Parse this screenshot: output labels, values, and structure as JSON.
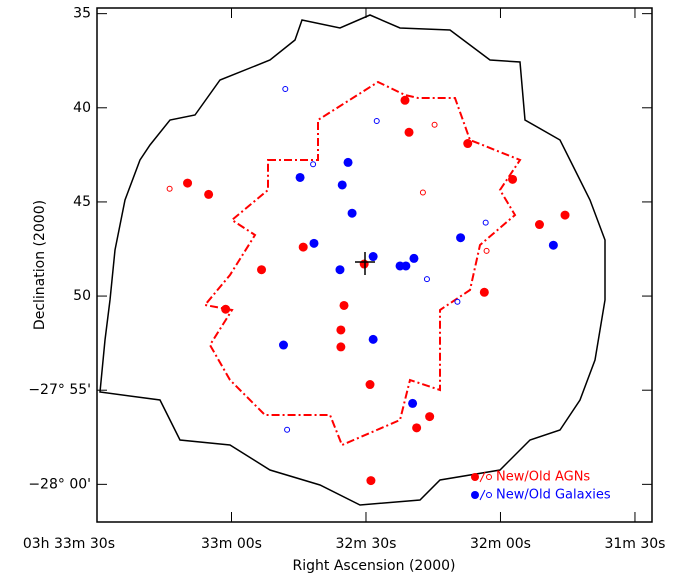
{
  "chart_data": {
    "type": "scatter",
    "x_label": "Right Ascension (2000)",
    "y_label": "Declination (2000)",
    "xlim": [
      150,
      26.2
    ],
    "ylim": [
      62.0,
      34.7
    ],
    "xticks": [
      {
        "value": 150,
        "label": "03h 33m 30s"
      },
      {
        "value": 120,
        "label": "33m 00s"
      },
      {
        "value": 90,
        "label": "32m 30s"
      },
      {
        "value": 60,
        "label": "32m 00s"
      },
      {
        "value": 30,
        "label": "31m 30s"
      }
    ],
    "yticks": [
      35,
      40,
      45,
      50,
      {
        "value": 55,
        "label": "−27° 55'"
      },
      {
        "value": 60,
        "label": "−28° 00'"
      }
    ],
    "series": [
      {
        "color": "#ff0000",
        "filled": true,
        "x": [
          81.3,
          80.4,
          67.3,
          129.8,
          125.1,
          57.3,
          45.6,
          51.3,
          104.0,
          113.3,
          63.6,
          121.3,
          94.9,
          95.6,
          95.6,
          89.1,
          75.8,
          78.7,
          88.9,
          90.4
        ],
        "values": [
          39.6,
          41.3,
          41.9,
          44.0,
          44.6,
          43.8,
          45.7,
          46.2,
          47.4,
          48.6,
          49.8,
          50.7,
          50.5,
          51.8,
          52.7,
          54.7,
          56.4,
          57.0,
          59.8,
          48.3
        ]
      },
      {
        "color": "#ff0000",
        "filled": false,
        "x": [
          133.8,
          74.7,
          77.3,
          63.1
        ],
        "values": [
          44.3,
          40.9,
          44.5,
          47.6
        ]
      },
      {
        "color": "#0000ff",
        "filled": true,
        "x": [
          94.0,
          104.7,
          95.3,
          93.1,
          101.6,
          95.8,
          88.4,
          79.3,
          82.4,
          81.1,
          68.9,
          48.2,
          108.4,
          88.4,
          79.6
        ],
        "values": [
          42.9,
          43.7,
          44.1,
          45.6,
          47.2,
          48.6,
          47.9,
          48.0,
          48.4,
          48.4,
          46.9,
          47.3,
          52.6,
          52.3,
          55.7
        ]
      },
      {
        "color": "#0000ff",
        "filled": false,
        "x": [
          108.0,
          87.6,
          101.8,
          63.3,
          76.4,
          69.6,
          107.6
        ],
        "values": [
          39.0,
          40.7,
          43.0,
          46.1,
          49.1,
          50.3,
          57.1
        ]
      }
    ],
    "legend": [
      {
        "label": "New/Old AGNs",
        "color": "#ff0000"
      },
      {
        "label": "New/Old Galaxies",
        "color": "#0000ff"
      }
    ]
  }
}
